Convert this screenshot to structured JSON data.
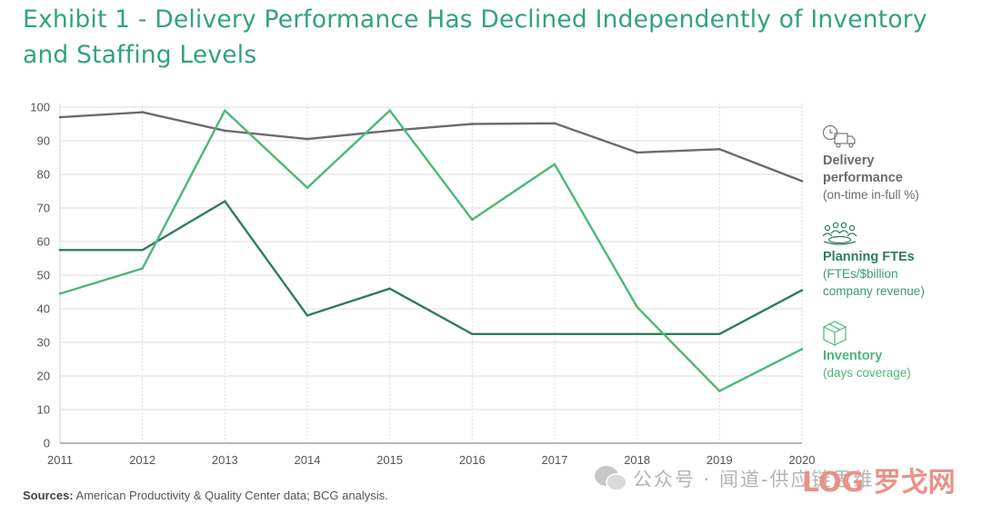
{
  "title": "Exhibit 1 - Delivery Performance Has Declined Independently of Inventory and Staffing Levels",
  "source": {
    "label": "Sources:",
    "text": " American Productivity & Quality Center data; BCG analysis."
  },
  "watermark": {
    "text": "公众号 · 闻道-供应链思维",
    "logo": "LOG 罗戈网"
  },
  "legend": [
    {
      "icon": "delivery-truck-icon",
      "title": "Delivery\nperformance",
      "sub": "(on-time in-full %)",
      "color": "#6b6b6b",
      "sub_color": "#6b6b6b"
    },
    {
      "icon": "people-group-icon",
      "title": "Planning FTEs",
      "sub": "(FTEs/$billion\ncompany revenue)",
      "color": "#2e7d5e",
      "sub_color": "#3c9a73"
    },
    {
      "icon": "box-icon",
      "title": "Inventory",
      "sub": "(days coverage)",
      "color": "#4cb878",
      "sub_color": "#4cb878"
    }
  ],
  "chart_data": {
    "type": "line",
    "x": [
      "2011",
      "2012",
      "2013",
      "2014",
      "2015",
      "2016",
      "2017",
      "2018",
      "2019",
      "2020"
    ],
    "ylim": [
      0,
      100
    ],
    "yticks": [
      0,
      10,
      20,
      30,
      40,
      50,
      60,
      70,
      80,
      90,
      100
    ],
    "grid": true,
    "legend_position": "right",
    "series": [
      {
        "name": "Delivery performance (on-time in-full %)",
        "color": "#6b6b6b",
        "values": [
          97,
          98.5,
          93,
          90.5,
          93,
          95,
          95.2,
          86.5,
          87.5,
          78
        ]
      },
      {
        "name": "Planning FTEs (FTEs/$billion company revenue)",
        "color": "#2e7d5e",
        "values": [
          57.5,
          57.5,
          72,
          38,
          46,
          32.5,
          32.5,
          32.5,
          32.5,
          45.5
        ]
      },
      {
        "name": "Inventory (days coverage)",
        "color": "#4cb878",
        "values": [
          44.5,
          52,
          99,
          76,
          99,
          66.5,
          83,
          40.5,
          15.5,
          28
        ]
      }
    ]
  }
}
